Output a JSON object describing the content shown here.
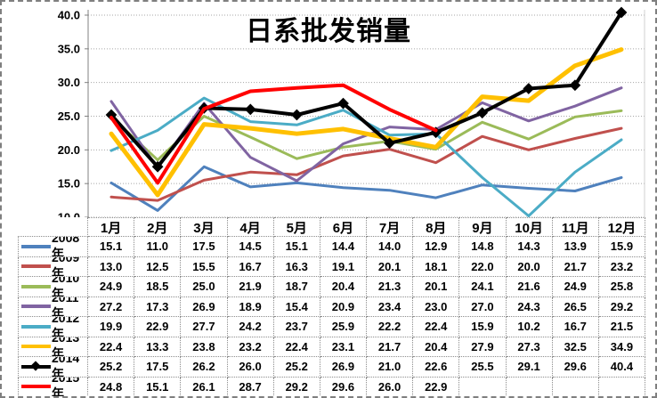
{
  "chart_data": {
    "type": "line",
    "title": "日系批发销量",
    "categories": [
      "1月",
      "2月",
      "3月",
      "4月",
      "5月",
      "6月",
      "7月",
      "8月",
      "9月",
      "10月",
      "11月",
      "12月"
    ],
    "series": [
      {
        "name": "2008年",
        "color": "#4F81BD",
        "line_width": 3,
        "marker": "none",
        "values": [
          15.1,
          11.0,
          17.5,
          14.5,
          15.1,
          14.4,
          14.0,
          12.9,
          14.8,
          14.3,
          13.9,
          15.9
        ]
      },
      {
        "name": "2009年",
        "color": "#C0504D",
        "line_width": 3,
        "marker": "none",
        "values": [
          13.0,
          12.5,
          15.5,
          16.7,
          16.3,
          19.1,
          20.1,
          18.1,
          22.0,
          20.0,
          21.7,
          23.2
        ]
      },
      {
        "name": "2010年",
        "color": "#9BBB59",
        "line_width": 3,
        "marker": "none",
        "values": [
          24.9,
          18.5,
          25.0,
          21.9,
          18.7,
          20.4,
          21.3,
          20.1,
          24.1,
          21.6,
          24.9,
          25.8
        ]
      },
      {
        "name": "2011年",
        "color": "#8064A2",
        "line_width": 3,
        "marker": "none",
        "values": [
          27.2,
          17.3,
          26.9,
          18.9,
          15.4,
          20.9,
          23.4,
          23.0,
          27.0,
          24.3,
          26.5,
          29.2
        ]
      },
      {
        "name": "2012年",
        "color": "#4BACC6",
        "line_width": 3,
        "marker": "none",
        "values": [
          19.9,
          22.9,
          27.7,
          24.2,
          23.7,
          25.9,
          22.2,
          22.4,
          15.9,
          10.2,
          16.7,
          21.5
        ]
      },
      {
        "name": "2013年",
        "color": "#FFC000",
        "line_width": 5,
        "marker": "none",
        "values": [
          22.4,
          13.3,
          23.8,
          23.2,
          22.4,
          23.1,
          21.7,
          20.4,
          27.9,
          27.3,
          32.5,
          34.9
        ]
      },
      {
        "name": "2014年",
        "color": "#000000",
        "line_width": 4,
        "marker": "diamond",
        "values": [
          25.2,
          17.5,
          26.2,
          26.0,
          25.2,
          26.9,
          21.0,
          22.6,
          25.5,
          29.1,
          29.6,
          40.4
        ]
      },
      {
        "name": "2015年",
        "color": "#FF0000",
        "line_width": 4,
        "marker": "none",
        "values": [
          24.8,
          15.1,
          26.1,
          28.7,
          29.2,
          29.6,
          26.0,
          22.9,
          null,
          null,
          null,
          null
        ]
      }
    ],
    "ylim": [
      10,
      40
    ],
    "y_tick_step": 5,
    "y_tick_labels": [
      "40.0",
      "35.0",
      "30.0",
      "25.0",
      "20.0",
      "15.0",
      "10.0"
    ],
    "grid": true,
    "gridline_color": "#a6a6a6",
    "axis_color": "#808080",
    "legend_position": "data-table-left-column",
    "value_format": "one-decimal"
  }
}
